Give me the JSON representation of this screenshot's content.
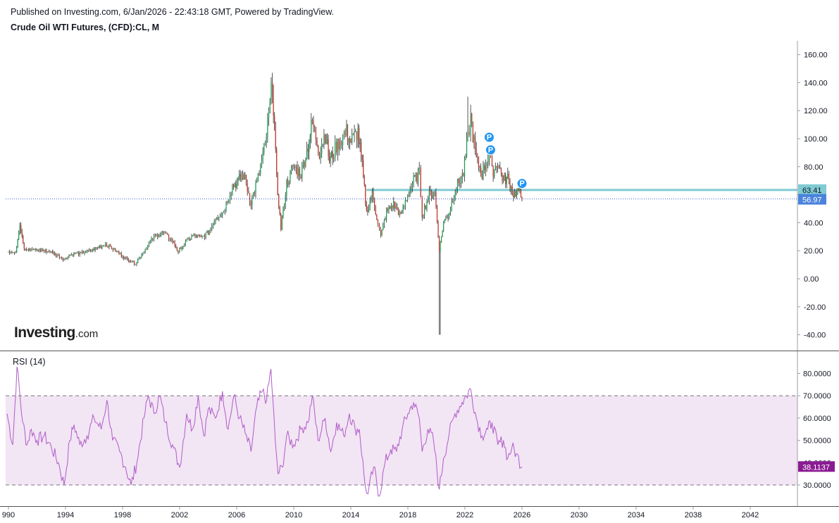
{
  "header": {
    "published": "Published on Investing.com, 6/Jan/2026 - 22:43:18 GMT, Powered by TradingView.",
    "title": "Crude Oil WTI Futures, (CFD):CL, M"
  },
  "logo": {
    "main": "Investing",
    "suffix": ".com"
  },
  "colors": {
    "up": "#1e9e5a",
    "down": "#c0392b",
    "resistance": "#80cbd3",
    "price_tag": "#4b83dc",
    "rsi_line": "#b05cc8",
    "rsi_band": "#f2e5f4",
    "rsi_tag": "#8b1a93"
  },
  "chart_data": [
    {
      "type": "candlestick",
      "title": "Crude Oil WTI Futures, (CFD):CL, M",
      "y_ticks": [
        "160.00",
        "140.00",
        "120.00",
        "100.00",
        "80.00",
        "60.00",
        "40.00",
        "20.00",
        "0.00",
        "-20.00",
        "-40.00"
      ],
      "ylim": [
        -45,
        170
      ],
      "x_ticks": [
        "990",
        "1994",
        "1998",
        "2002",
        "2006",
        "2010",
        "2014",
        "2018",
        "2022",
        "2026",
        "2030",
        "2034",
        "2038",
        "2042"
      ],
      "xlim": [
        1989.9,
        2045.2
      ],
      "last_price": {
        "value": 56.97,
        "label": "56.97"
      },
      "resistance": {
        "value": 63.41,
        "label": "63.41",
        "from_year": 2015.1
      },
      "pivot_markers": [
        {
          "label": "P",
          "year": 2023.7,
          "value": 101
        },
        {
          "label": "P",
          "year": 2023.8,
          "value": 92
        },
        {
          "label": "P",
          "year": 2026.0,
          "value": 68
        }
      ],
      "price_series": [
        [
          1989.9,
          20
        ],
        [
          1990.5,
          18
        ],
        [
          1990.8,
          40
        ],
        [
          1991.1,
          22
        ],
        [
          1991.5,
          20
        ],
        [
          1992,
          21
        ],
        [
          1993,
          19
        ],
        [
          1993.9,
          14
        ],
        [
          1994.5,
          18
        ],
        [
          1995,
          18
        ],
        [
          1996,
          21
        ],
        [
          1996.8,
          25
        ],
        [
          1997.5,
          20
        ],
        [
          1998,
          16
        ],
        [
          1998.9,
          11
        ],
        [
          1999.5,
          20
        ],
        [
          2000.2,
          30
        ],
        [
          2000.8,
          33
        ],
        [
          2001.5,
          27
        ],
        [
          2001.9,
          19
        ],
        [
          2002.5,
          27
        ],
        [
          2003,
          31
        ],
        [
          2003.5,
          29
        ],
        [
          2004,
          33
        ],
        [
          2004.6,
          45
        ],
        [
          2005,
          47
        ],
        [
          2005.7,
          66
        ],
        [
          2006.5,
          74
        ],
        [
          2007,
          55
        ],
        [
          2007.5,
          72
        ],
        [
          2008,
          95
        ],
        [
          2008.5,
          140
        ],
        [
          2008.8,
          70
        ],
        [
          2009.1,
          36
        ],
        [
          2009.5,
          68
        ],
        [
          2010,
          80
        ],
        [
          2010.5,
          75
        ],
        [
          2011,
          95
        ],
        [
          2011.3,
          112
        ],
        [
          2011.8,
          90
        ],
        [
          2012.2,
          105
        ],
        [
          2012.5,
          84
        ],
        [
          2012.8,
          90
        ],
        [
          2013,
          95
        ],
        [
          2013.7,
          105
        ],
        [
          2014,
          98
        ],
        [
          2014.5,
          105
        ],
        [
          2014.8,
          80
        ],
        [
          2015.1,
          48
        ],
        [
          2015.5,
          60
        ],
        [
          2015.9,
          40
        ],
        [
          2016.1,
          30
        ],
        [
          2016.5,
          48
        ],
        [
          2017,
          53
        ],
        [
          2017.5,
          45
        ],
        [
          2017.9,
          58
        ],
        [
          2018.4,
          70
        ],
        [
          2018.8,
          75
        ],
        [
          2019,
          46
        ],
        [
          2019.5,
          60
        ],
        [
          2019.9,
          61
        ],
        [
          2020.2,
          20
        ],
        [
          2020.5,
          40
        ],
        [
          2020.9,
          48
        ],
        [
          2021.4,
          66
        ],
        [
          2021.9,
          75
        ],
        [
          2022.2,
          100
        ],
        [
          2022.4,
          115
        ],
        [
          2022.8,
          85
        ],
        [
          2023.2,
          75
        ],
        [
          2023.7,
          90
        ],
        [
          2023.9,
          76
        ],
        [
          2024.3,
          83
        ],
        [
          2024.7,
          70
        ],
        [
          2025,
          72
        ],
        [
          2025.4,
          60
        ],
        [
          2025.7,
          63
        ],
        [
          2026,
          57
        ]
      ]
    },
    {
      "type": "line",
      "title": "RSI (14)",
      "y_ticks": [
        "80.0000",
        "70.0000",
        "60.0000",
        "50.0000",
        "40.0000",
        "30.0000"
      ],
      "ylim": [
        22,
        85
      ],
      "overbought": 70,
      "oversold": 30,
      "last_value": {
        "value": 38.1137,
        "label": "38.1137"
      },
      "series": [
        [
          1989.9,
          62
        ],
        [
          1990.3,
          48
        ],
        [
          1990.6,
          83
        ],
        [
          1991,
          58
        ],
        [
          1991.3,
          48
        ],
        [
          1991.6,
          55
        ],
        [
          1992,
          50
        ],
        [
          1992.5,
          52
        ],
        [
          1993,
          47
        ],
        [
          1993.5,
          40
        ],
        [
          1993.9,
          30
        ],
        [
          1994.3,
          50
        ],
        [
          1994.6,
          57
        ],
        [
          1995,
          48
        ],
        [
          1995.5,
          52
        ],
        [
          1996,
          60
        ],
        [
          1996.5,
          55
        ],
        [
          1996.9,
          68
        ],
        [
          1997.3,
          50
        ],
        [
          1997.8,
          45
        ],
        [
          1998.2,
          38
        ],
        [
          1998.6,
          30
        ],
        [
          1999,
          40
        ],
        [
          1999.5,
          60
        ],
        [
          1999.8,
          70
        ],
        [
          2000.2,
          62
        ],
        [
          2000.6,
          70
        ],
        [
          2001,
          58
        ],
        [
          2001.5,
          48
        ],
        [
          2002,
          38
        ],
        [
          2002.5,
          62
        ],
        [
          2002.9,
          55
        ],
        [
          2003.3,
          70
        ],
        [
          2003.7,
          52
        ],
        [
          2004,
          64
        ],
        [
          2004.5,
          60
        ],
        [
          2005,
          72
        ],
        [
          2005.4,
          55
        ],
        [
          2005.8,
          70
        ],
        [
          2006.2,
          60
        ],
        [
          2006.6,
          53
        ],
        [
          2007,
          45
        ],
        [
          2007.4,
          65
        ],
        [
          2007.8,
          72
        ],
        [
          2008.1,
          68
        ],
        [
          2008.4,
          82
        ],
        [
          2008.7,
          50
        ],
        [
          2008.9,
          35
        ],
        [
          2009.2,
          38
        ],
        [
          2009.5,
          52
        ],
        [
          2010,
          48
        ],
        [
          2010.5,
          55
        ],
        [
          2011,
          58
        ],
        [
          2011.3,
          70
        ],
        [
          2011.7,
          50
        ],
        [
          2012.2,
          60
        ],
        [
          2012.6,
          45
        ],
        [
          2013,
          58
        ],
        [
          2013.5,
          52
        ],
        [
          2013.9,
          62
        ],
        [
          2014.3,
          55
        ],
        [
          2014.6,
          55
        ],
        [
          2015,
          30
        ],
        [
          2015.2,
          26
        ],
        [
          2015.6,
          38
        ],
        [
          2016,
          25
        ],
        [
          2016.4,
          40
        ],
        [
          2016.8,
          46
        ],
        [
          2017.2,
          45
        ],
        [
          2017.6,
          55
        ],
        [
          2018,
          62
        ],
        [
          2018.4,
          67
        ],
        [
          2018.8,
          60
        ],
        [
          2019,
          45
        ],
        [
          2019.4,
          55
        ],
        [
          2019.8,
          50
        ],
        [
          2020.2,
          28
        ],
        [
          2020.5,
          42
        ],
        [
          2020.9,
          53
        ],
        [
          2021.3,
          62
        ],
        [
          2021.8,
          67
        ],
        [
          2022.1,
          70
        ],
        [
          2022.4,
          73
        ],
        [
          2022.8,
          60
        ],
        [
          2023.2,
          52
        ],
        [
          2023.6,
          55
        ],
        [
          2023.9,
          58
        ],
        [
          2024.3,
          48
        ],
        [
          2024.7,
          50
        ],
        [
          2025,
          42
        ],
        [
          2025.3,
          47
        ],
        [
          2025.6,
          44
        ],
        [
          2026,
          38.1137
        ]
      ]
    }
  ]
}
